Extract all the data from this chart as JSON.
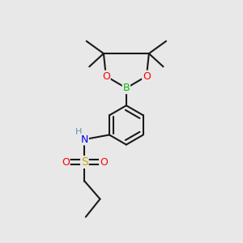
{
  "bg_color": "#e8e8e8",
  "bond_color": "#1a1a1a",
  "bond_lw": 1.5,
  "atom_colors": {
    "B": "#00bb00",
    "O": "#ff0000",
    "N": "#0000ff",
    "S": "#ccaa00",
    "H": "#6699aa",
    "C": "#1a1a1a"
  },
  "font_size": 9,
  "fig_size": [
    3.0,
    3.0
  ],
  "dpi": 100
}
